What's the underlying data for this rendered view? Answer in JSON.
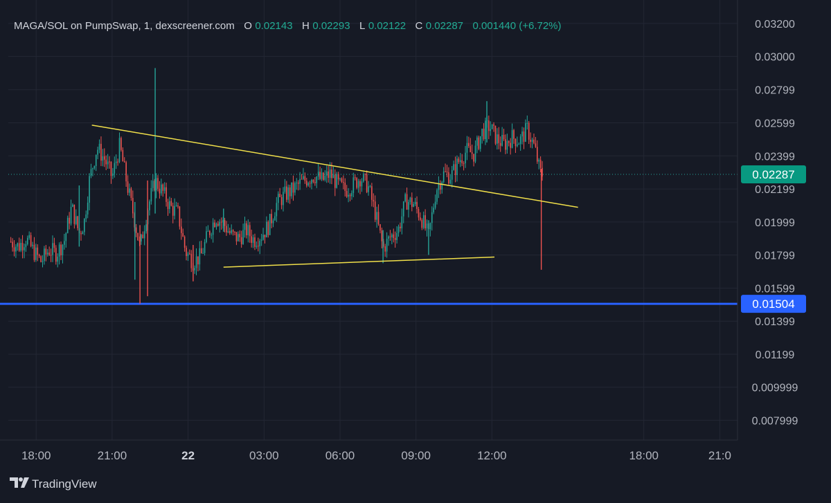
{
  "header": {
    "title": "MAGA/SOL on PumpSwap, 1, dexscreener.com",
    "o_label": "O",
    "o_value": "0.02143",
    "h_label": "H",
    "h_value": "0.02293",
    "l_label": "L",
    "l_value": "0.02122",
    "c_label": "C",
    "c_value": "0.02287",
    "change": "0.001440 (+6.72%)"
  },
  "brand": {
    "name": "TradingView",
    "icon": "tradingview-logo-icon"
  },
  "colors": {
    "background": "#161a25",
    "grid": "#232734",
    "up": "#26a69a",
    "down": "#ef5350",
    "trendline": "#f1e04a",
    "hline": "#2962ff",
    "last_price_badge": "#089981"
  },
  "chart_data": {
    "type": "candlestick",
    "symbol": "MAGA/SOL",
    "interval": "1",
    "y_ticks": [
      "0.03200",
      "0.03000",
      "0.02799",
      "0.02599",
      "0.02399",
      "0.02199",
      "0.01999",
      "0.01799",
      "0.01599",
      "0.01399",
      "0.01199",
      "0.009999",
      "0.007999"
    ],
    "x_ticks": [
      {
        "label": "18:00",
        "hour": 18,
        "bold": false
      },
      {
        "label": "21:00",
        "hour": 21,
        "bold": false
      },
      {
        "label": "22",
        "hour": 24,
        "bold": true
      },
      {
        "label": "03:00",
        "hour": 27,
        "bold": false
      },
      {
        "label": "06:00",
        "hour": 30,
        "bold": false
      },
      {
        "label": "09:00",
        "hour": 33,
        "bold": false
      },
      {
        "label": "12:00",
        "hour": 36,
        "bold": false
      },
      {
        "label": "18:00",
        "hour": 42,
        "bold": false
      },
      {
        "label": "21:0",
        "hour": 45,
        "bold": false
      }
    ],
    "ylim": [
      0.0068,
      0.033
    ],
    "xlim_hours": [
      16.9,
      45.7
    ],
    "last_price": {
      "value": 0.02287,
      "label": "0.02287"
    },
    "horizontal_line": {
      "value": 0.01504,
      "label": "0.01504"
    },
    "trendlines": [
      {
        "from": {
          "hour": 20.2,
          "price": 0.02585
        },
        "to": {
          "hour": 39.4,
          "price": 0.02088
        }
      },
      {
        "from": {
          "hour": 25.4,
          "price": 0.01726
        },
        "to": {
          "hour": 36.1,
          "price": 0.01787
        }
      }
    ],
    "price_path": [
      {
        "hour": 17.0,
        "price": 0.0188
      },
      {
        "hour": 17.3,
        "price": 0.0185
      },
      {
        "hour": 17.6,
        "price": 0.019
      },
      {
        "hour": 17.9,
        "price": 0.0182
      },
      {
        "hour": 18.2,
        "price": 0.0176
      },
      {
        "hour": 18.5,
        "price": 0.0183
      },
      {
        "hour": 18.8,
        "price": 0.0181
      },
      {
        "hour": 19.1,
        "price": 0.0188
      },
      {
        "hour": 19.4,
        "price": 0.0209
      },
      {
        "hour": 19.7,
        "price": 0.0193
      },
      {
        "hour": 19.9,
        "price": 0.02
      },
      {
        "hour": 20.1,
        "price": 0.0225
      },
      {
        "hour": 20.4,
        "price": 0.0245
      },
      {
        "hour": 20.7,
        "price": 0.0238
      },
      {
        "hour": 21.0,
        "price": 0.0227
      },
      {
        "hour": 21.3,
        "price": 0.0246
      },
      {
        "hour": 21.6,
        "price": 0.0222
      },
      {
        "hour": 21.9,
        "price": 0.02
      },
      {
        "hour": 22.1,
        "price": 0.0184
      },
      {
        "hour": 22.4,
        "price": 0.0208
      },
      {
        "hour": 22.7,
        "price": 0.0225
      },
      {
        "hour": 23.0,
        "price": 0.0218
      },
      {
        "hour": 23.3,
        "price": 0.0209
      },
      {
        "hour": 23.6,
        "price": 0.0205
      },
      {
        "hour": 23.9,
        "price": 0.0182
      },
      {
        "hour": 24.2,
        "price": 0.0176
      },
      {
        "hour": 24.5,
        "price": 0.0179
      },
      {
        "hour": 24.8,
        "price": 0.0193
      },
      {
        "hour": 25.1,
        "price": 0.0203
      },
      {
        "hour": 25.4,
        "price": 0.0199
      },
      {
        "hour": 25.7,
        "price": 0.0192
      },
      {
        "hour": 26.0,
        "price": 0.019
      },
      {
        "hour": 26.3,
        "price": 0.0195
      },
      {
        "hour": 26.6,
        "price": 0.0189
      },
      {
        "hour": 26.9,
        "price": 0.0192
      },
      {
        "hour": 27.2,
        "price": 0.0198
      },
      {
        "hour": 27.5,
        "price": 0.0211
      },
      {
        "hour": 27.8,
        "price": 0.0216
      },
      {
        "hour": 28.1,
        "price": 0.0219
      },
      {
        "hour": 28.4,
        "price": 0.0223
      },
      {
        "hour": 28.7,
        "price": 0.0226
      },
      {
        "hour": 29.0,
        "price": 0.0228
      },
      {
        "hour": 29.3,
        "price": 0.0225
      },
      {
        "hour": 29.6,
        "price": 0.0229
      },
      {
        "hour": 29.9,
        "price": 0.0223
      },
      {
        "hour": 30.2,
        "price": 0.0219
      },
      {
        "hour": 30.5,
        "price": 0.0222
      },
      {
        "hour": 30.8,
        "price": 0.0227
      },
      {
        "hour": 31.1,
        "price": 0.0222
      },
      {
        "hour": 31.4,
        "price": 0.0205
      },
      {
        "hour": 31.7,
        "price": 0.0184
      },
      {
        "hour": 32.0,
        "price": 0.0191
      },
      {
        "hour": 32.3,
        "price": 0.0195
      },
      {
        "hour": 32.6,
        "price": 0.0213
      },
      {
        "hour": 32.9,
        "price": 0.0211
      },
      {
        "hour": 33.2,
        "price": 0.0203
      },
      {
        "hour": 33.5,
        "price": 0.0191
      },
      {
        "hour": 33.8,
        "price": 0.022
      },
      {
        "hour": 34.1,
        "price": 0.0229
      },
      {
        "hour": 34.4,
        "price": 0.0228
      },
      {
        "hour": 34.7,
        "price": 0.0237
      },
      {
        "hour": 35.0,
        "price": 0.0243
      },
      {
        "hour": 35.3,
        "price": 0.0241
      },
      {
        "hour": 35.6,
        "price": 0.0254
      },
      {
        "hour": 35.9,
        "price": 0.0258
      },
      {
        "hour": 36.2,
        "price": 0.025
      },
      {
        "hour": 36.5,
        "price": 0.0247
      },
      {
        "hour": 36.8,
        "price": 0.0251
      },
      {
        "hour": 37.1,
        "price": 0.0249
      },
      {
        "hour": 37.4,
        "price": 0.0256
      },
      {
        "hour": 37.7,
        "price": 0.0244
      },
      {
        "hour": 37.9,
        "price": 0.023
      },
      {
        "hour": 38.0,
        "price": 0.02287
      }
    ],
    "spikes": [
      {
        "hour": 19.7,
        "high": 0.0222,
        "low": 0.0185
      },
      {
        "hour": 21.9,
        "high": 0.0212,
        "low": 0.0165
      },
      {
        "hour": 22.1,
        "high": 0.0198,
        "low": 0.01504
      },
      {
        "hour": 22.4,
        "high": 0.0225,
        "low": 0.0155
      },
      {
        "hour": 22.7,
        "high": 0.0293,
        "low": 0.0205
      },
      {
        "hour": 24.2,
        "high": 0.0186,
        "low": 0.0164
      },
      {
        "hour": 25.4,
        "high": 0.0208,
        "low": 0.0194
      },
      {
        "hour": 31.7,
        "high": 0.0195,
        "low": 0.0175
      },
      {
        "hour": 33.5,
        "high": 0.0201,
        "low": 0.018
      },
      {
        "hour": 35.8,
        "high": 0.0273,
        "low": 0.0248
      },
      {
        "hour": 37.95,
        "high": 0.0232,
        "low": 0.0171
      }
    ]
  }
}
